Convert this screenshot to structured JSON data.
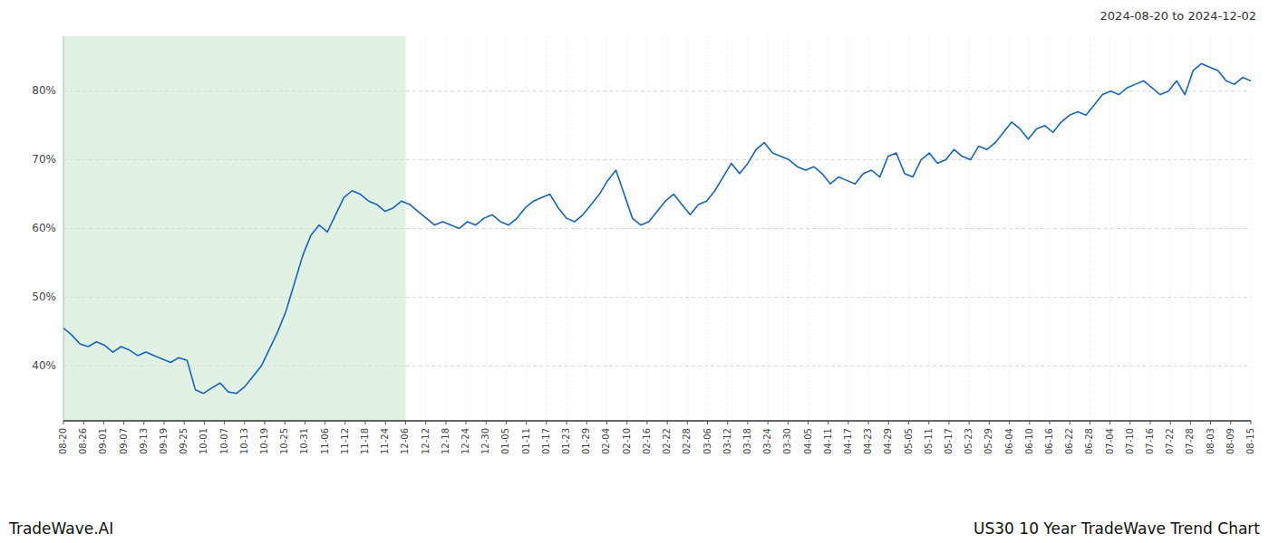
{
  "chart_data": {
    "type": "line",
    "title": "US30 10 Year TradeWave Trend Chart",
    "subtitle": "2024-08-20 to 2024-12-02",
    "annotations": [
      "TradeWave.AI"
    ],
    "color": "#1565c0",
    "grid": true,
    "xlim": [
      0,
      144
    ],
    "xticks": [
      {
        "value": 0,
        "label": "08-20"
      },
      {
        "value": 2.440678,
        "label": "08-26"
      },
      {
        "value": 4.881356,
        "label": "09-01"
      },
      {
        "value": 7.322034,
        "label": "09-07"
      },
      {
        "value": 9.762712,
        "label": "09-13"
      },
      {
        "value": 12.20339,
        "label": "09-19"
      },
      {
        "value": 14.644068,
        "label": "09-25"
      },
      {
        "value": 17.084746,
        "label": "10-01"
      },
      {
        "value": 19.525424,
        "label": "10-07"
      },
      {
        "value": 21.966102,
        "label": "10-13"
      },
      {
        "value": 24.40678,
        "label": "10-19"
      },
      {
        "value": 26.847458,
        "label": "10-25"
      },
      {
        "value": 29.288136,
        "label": "10-31"
      },
      {
        "value": 31.728814,
        "label": "11-06"
      },
      {
        "value": 34.169492,
        "label": "11-12"
      },
      {
        "value": 36.610169,
        "label": "11-18"
      },
      {
        "value": 39.050847,
        "label": "11-24"
      },
      {
        "value": 41.491525,
        "label": "12-06"
      },
      {
        "value": 43.932203,
        "label": "12-12"
      },
      {
        "value": 46.372881,
        "label": "12-18"
      },
      {
        "value": 48.813559,
        "label": "12-24"
      },
      {
        "value": 51.254237,
        "label": "12-30"
      },
      {
        "value": 53.694915,
        "label": "01-05"
      },
      {
        "value": 56.135593,
        "label": "01-11"
      },
      {
        "value": 58.576271,
        "label": "01-17"
      },
      {
        "value": 61.016949,
        "label": "01-23"
      },
      {
        "value": 63.457627,
        "label": "01-29"
      },
      {
        "value": 65.898305,
        "label": "02-04"
      },
      {
        "value": 68.338983,
        "label": "02-10"
      },
      {
        "value": 70.779661,
        "label": "02-16"
      },
      {
        "value": 73.220339,
        "label": "02-22"
      },
      {
        "value": 75.661017,
        "label": "02-28"
      },
      {
        "value": 78.101695,
        "label": "03-06"
      },
      {
        "value": 80.542373,
        "label": "03-12"
      },
      {
        "value": 82.983051,
        "label": "03-18"
      },
      {
        "value": 85.423729,
        "label": "03-24"
      },
      {
        "value": 87.864407,
        "label": "03-30"
      },
      {
        "value": 90.305085,
        "label": "04-05"
      },
      {
        "value": 92.745763,
        "label": "04-11"
      },
      {
        "value": 95.186441,
        "label": "04-17"
      },
      {
        "value": 97.627119,
        "label": "04-23"
      },
      {
        "value": 100.067797,
        "label": "04-29"
      },
      {
        "value": 102.508475,
        "label": "05-05"
      },
      {
        "value": 104.949153,
        "label": "05-11"
      },
      {
        "value": 107.389831,
        "label": "05-17"
      },
      {
        "value": 109.830508,
        "label": "05-23"
      },
      {
        "value": 112.271186,
        "label": "05-29"
      },
      {
        "value": 114.711864,
        "label": "06-04"
      },
      {
        "value": 117.152542,
        "label": "06-10"
      },
      {
        "value": 119.59322,
        "label": "06-16"
      },
      {
        "value": 122.033898,
        "label": "06-22"
      },
      {
        "value": 124.474576,
        "label": "06-28"
      },
      {
        "value": 126.915254,
        "label": "07-04"
      },
      {
        "value": 129.355932,
        "label": "07-10"
      },
      {
        "value": 131.79661,
        "label": "07-16"
      },
      {
        "value": 134.237288,
        "label": "07-22"
      },
      {
        "value": 136.677966,
        "label": "07-28"
      },
      {
        "value": 139.118644,
        "label": "08-03"
      },
      {
        "value": 141.559322,
        "label": "08-09"
      },
      {
        "value": 144,
        "label": "08-15"
      }
    ],
    "shaded_regions": [
      {
        "start": 0,
        "end": 41.491525,
        "color": "#d4edda"
      }
    ],
    "ylim": [
      32,
      88
    ],
    "yticks": [
      {
        "value": 40,
        "label": "40%"
      },
      {
        "value": 50,
        "label": "50%"
      },
      {
        "value": 60,
        "label": "60%"
      },
      {
        "value": 70,
        "label": "70%"
      },
      {
        "value": 80,
        "label": "80%"
      }
    ],
    "values": [
      45.5,
      44.5,
      43.2,
      42.8,
      43.5,
      43.0,
      42.0,
      42.8,
      42.3,
      41.5,
      42.0,
      41.5,
      41.0,
      40.5,
      41.2,
      40.8,
      36.5,
      36.0,
      36.8,
      37.5,
      36.2,
      36.0,
      37.0,
      38.5,
      40.0,
      42.5,
      45.0,
      48.0,
      52.0,
      56.0,
      59.0,
      60.5,
      59.5,
      62.0,
      64.5,
      65.5,
      65.0,
      64.0,
      63.5,
      62.5,
      63.0,
      64.0,
      63.5,
      62.5,
      61.5,
      60.5,
      61.0,
      60.5,
      60.0,
      61.0,
      60.5,
      61.5,
      62.0,
      61.0,
      60.5,
      61.5,
      63.0,
      64.0,
      64.5,
      65.0,
      63.0,
      61.5,
      61.0,
      62.0,
      63.5,
      65.0,
      67.0,
      68.5,
      65.0,
      61.5,
      60.5,
      61.0,
      62.5,
      64.0,
      65.0,
      63.5,
      62.0,
      63.5,
      64.0,
      65.5,
      67.5,
      69.5,
      68.0,
      69.5,
      71.5,
      72.5,
      71.0,
      70.5,
      70.0,
      69.0,
      68.5,
      69.0,
      68.0,
      66.5,
      67.5,
      67.0,
      66.5,
      68.0,
      68.5,
      67.5,
      70.5,
      71.0,
      68.0,
      67.5,
      70.0,
      71.0,
      69.5,
      70.0,
      71.5,
      70.5,
      70.0,
      72.0,
      71.5,
      72.5,
      74.0,
      75.5,
      74.5,
      73.0,
      74.5,
      75.0,
      74.0,
      75.5,
      76.5,
      77.0,
      76.5,
      78.0,
      79.5,
      80.0,
      79.5,
      80.5,
      81.0,
      81.5,
      80.5,
      79.5,
      80.0,
      81.5,
      79.5,
      83.0,
      84.0,
      83.5,
      83.0,
      81.5,
      81.0,
      82.0,
      81.5
    ]
  }
}
